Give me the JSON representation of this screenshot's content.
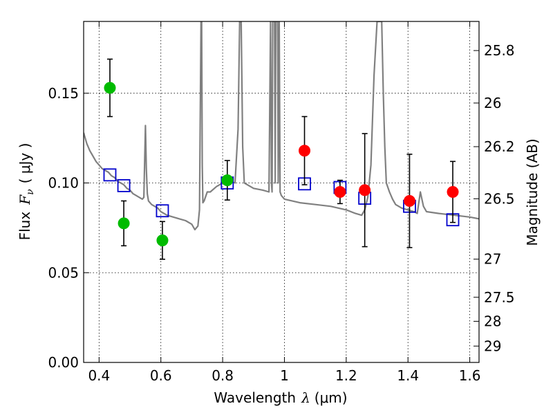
{
  "chart_data": {
    "type": "scatter",
    "xlabel_prefix": "Wavelength",
    "xlabel_var": "λ",
    "xlabel_unit": "(μm)",
    "ylabel_prefix": "Flux",
    "ylabel_var": "F",
    "ylabel_sub": "ν",
    "ylabel_unit": "( μJy )",
    "y2label": "Magnitude (AB)",
    "xlim": [
      0.35,
      1.63
    ],
    "ylim": [
      0.0,
      0.19
    ],
    "grid": true,
    "xticks": [
      0.4,
      0.6,
      0.8,
      1.0,
      1.2,
      1.4,
      1.6
    ],
    "xtick_labels": [
      "0.4",
      "0.6",
      "0.8",
      "1",
      "1.2",
      "1.4",
      "1.6"
    ],
    "yticks": [
      0.0,
      0.05,
      0.1,
      0.15
    ],
    "ytick_labels": [
      "0.00",
      "0.05",
      "0.10",
      "0.15"
    ],
    "mag_ticks": [
      {
        "mag": 25.8,
        "label": "25.8"
      },
      {
        "mag": 26.0,
        "label": "26"
      },
      {
        "mag": 26.2,
        "label": "26.2"
      },
      {
        "mag": 26.5,
        "label": "26.5"
      },
      {
        "mag": 27.0,
        "label": "27"
      },
      {
        "mag": 27.5,
        "label": "27.5"
      },
      {
        "mag": 28.0,
        "label": "28"
      },
      {
        "mag": 29.0,
        "label": "29"
      }
    ],
    "series": [
      {
        "name": "template-spectrum",
        "kind": "line",
        "color": "#808080",
        "x": [
          0.35,
          0.36,
          0.37,
          0.38,
          0.39,
          0.4,
          0.41,
          0.42,
          0.43,
          0.44,
          0.45,
          0.46,
          0.47,
          0.48,
          0.49,
          0.5,
          0.51,
          0.52,
          0.53,
          0.54,
          0.545,
          0.55,
          0.553,
          0.556,
          0.56,
          0.57,
          0.58,
          0.59,
          0.6,
          0.62,
          0.64,
          0.66,
          0.68,
          0.7,
          0.71,
          0.72,
          0.725,
          0.73,
          0.732,
          0.734,
          0.736,
          0.74,
          0.75,
          0.76,
          0.78,
          0.8,
          0.82,
          0.84,
          0.85,
          0.855,
          0.86,
          0.865,
          0.87,
          0.9,
          0.93,
          0.95,
          0.955,
          0.958,
          0.96,
          0.962,
          0.965,
          0.968,
          0.97,
          0.972,
          0.975,
          0.978,
          0.98,
          0.983,
          0.986,
          0.99,
          1.0,
          1.05,
          1.1,
          1.15,
          1.2,
          1.23,
          1.25,
          1.26,
          1.27,
          1.28,
          1.29,
          1.3,
          1.31,
          1.315,
          1.32,
          1.325,
          1.33,
          1.34,
          1.35,
          1.36,
          1.38,
          1.4,
          1.42,
          1.43,
          1.44,
          1.45,
          1.46,
          1.5,
          1.55,
          1.6,
          1.63
        ],
        "y": [
          0.128,
          0.122,
          0.118,
          0.115,
          0.112,
          0.11,
          0.108,
          0.107,
          0.106,
          0.104,
          0.103,
          0.101,
          0.1,
          0.099,
          0.097,
          0.096,
          0.094,
          0.093,
          0.092,
          0.091,
          0.092,
          0.132,
          0.108,
          0.094,
          0.09,
          0.088,
          0.087,
          0.086,
          0.084,
          0.082,
          0.081,
          0.08,
          0.079,
          0.077,
          0.074,
          0.076,
          0.085,
          0.19,
          0.19,
          0.11,
          0.089,
          0.09,
          0.095,
          0.095,
          0.098,
          0.1,
          0.101,
          0.1,
          0.13,
          0.19,
          0.19,
          0.12,
          0.1,
          0.097,
          0.096,
          0.095,
          0.19,
          0.1,
          0.095,
          0.19,
          0.19,
          0.19,
          0.1,
          0.19,
          0.19,
          0.19,
          0.1,
          0.19,
          0.095,
          0.093,
          0.091,
          0.089,
          0.088,
          0.087,
          0.085,
          0.083,
          0.082,
          0.085,
          0.092,
          0.11,
          0.16,
          0.19,
          0.19,
          0.19,
          0.15,
          0.12,
          0.1,
          0.095,
          0.091,
          0.088,
          0.086,
          0.085,
          0.084,
          0.083,
          0.095,
          0.087,
          0.084,
          0.083,
          0.082,
          0.081,
          0.08
        ]
      },
      {
        "name": "model-photometry",
        "kind": "open-square",
        "color": "#0000cc",
        "x": [
          0.435,
          0.48,
          0.605,
          0.815,
          1.065,
          1.18,
          1.26,
          1.405,
          1.545
        ],
        "y": [
          0.1045,
          0.0985,
          0.0845,
          0.1,
          0.0995,
          0.0975,
          0.0915,
          0.087,
          0.0795
        ]
      },
      {
        "name": "observed-green",
        "kind": "filled-circle",
        "color": "#00bb00",
        "x": [
          0.435,
          0.48,
          0.605,
          0.815
        ],
        "y": [
          0.153,
          0.0775,
          0.068,
          0.1015
        ],
        "yerr": [
          0.016,
          0.0125,
          0.0105,
          0.011
        ]
      },
      {
        "name": "observed-red",
        "kind": "filled-circle",
        "color": "#ff0000",
        "x": [
          1.065,
          1.18,
          1.26,
          1.405,
          1.545
        ],
        "y": [
          0.118,
          0.095,
          0.096,
          0.09,
          0.095
        ],
        "yerr": [
          0.019,
          0.0065,
          0.0315,
          0.026,
          0.017
        ]
      }
    ]
  }
}
